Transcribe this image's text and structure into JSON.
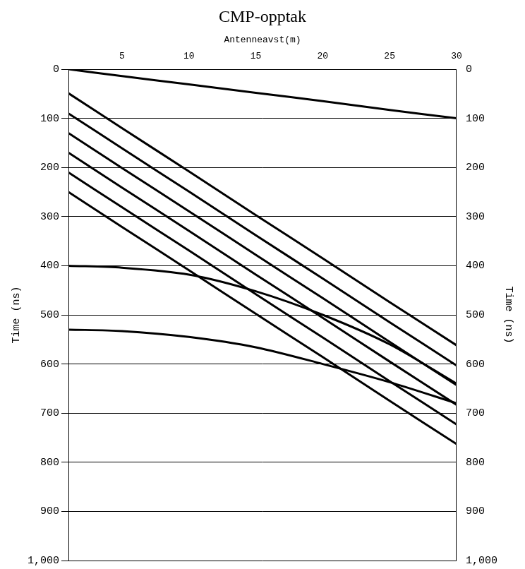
{
  "chart_data": {
    "type": "line",
    "title": "CMP-opptak",
    "x_label": "Antenneavst(m)",
    "y_label": "Time (ns)",
    "y2_label": "Time (ns)",
    "x": [
      1,
      5,
      10,
      15,
      20,
      25,
      30
    ],
    "series": [
      {
        "color": "#000000",
        "values": [
          0,
          14,
          31,
          48,
          65,
          83,
          100
        ]
      },
      {
        "color": "#000000",
        "values": [
          49,
          120,
          208,
          297,
          385,
          474,
          562
        ]
      },
      {
        "color": "#000000",
        "values": [
          90,
          161,
          249,
          338,
          426,
          515,
          603
        ]
      },
      {
        "color": "#000000",
        "values": [
          130,
          201,
          289,
          378,
          466,
          555,
          643
        ]
      },
      {
        "color": "#000000",
        "values": [
          170,
          241,
          329,
          418,
          506,
          595,
          683
        ]
      },
      {
        "color": "#000000",
        "values": [
          210,
          281,
          369,
          458,
          546,
          635,
          723
        ]
      },
      {
        "color": "#000000",
        "values": [
          250,
          321,
          409,
          498,
          586,
          675,
          763
        ]
      },
      {
        "color": "#000000",
        "values": [
          400,
          404,
          418,
          452,
          500,
          560,
          640
        ]
      },
      {
        "color": "#000000",
        "values": [
          530,
          533,
          545,
          566,
          600,
          637,
          680
        ]
      }
    ],
    "xlim": [
      1,
      30
    ],
    "xticks": [
      5,
      10,
      15,
      20,
      25,
      30
    ],
    "ylim": [
      0,
      1000
    ],
    "yticks": [
      0,
      100,
      200,
      300,
      400,
      500,
      600,
      700,
      800,
      900,
      1000
    ],
    "y2lim": [
      0,
      1000
    ],
    "y2ticks": [
      0,
      100,
      200,
      300,
      400,
      500,
      600,
      700,
      800,
      900,
      1000
    ],
    "grid": true
  }
}
